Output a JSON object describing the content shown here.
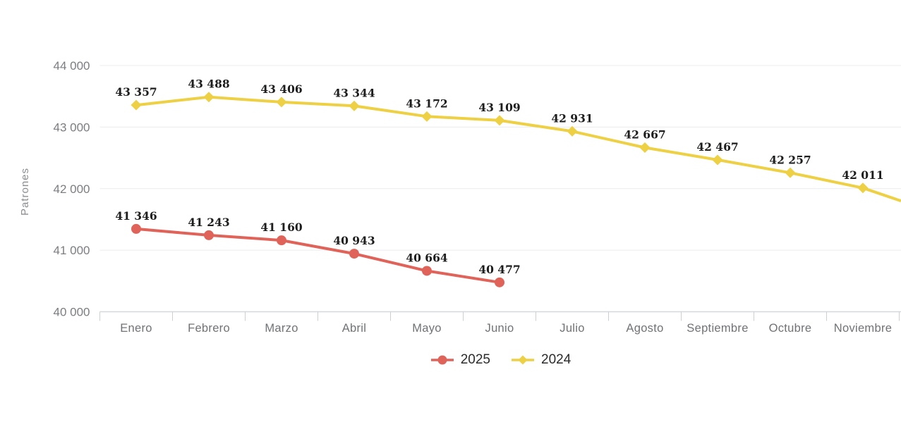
{
  "chart_data": {
    "type": "line",
    "title": "",
    "ylabel": "Patrones",
    "xlabel": "",
    "categories": [
      "Enero",
      "Febrero",
      "Marzo",
      "Abril",
      "Mayo",
      "Junio",
      "Julio",
      "Agosto",
      "Septiembre",
      "Octubre",
      "Noviembre"
    ],
    "series": [
      {
        "name": "2025",
        "color": "#e0635a",
        "marker": "circle",
        "values": [
          41346,
          41243,
          41160,
          40943,
          40664,
          40477
        ],
        "labels": [
          "41 346",
          "41 243",
          "41 160",
          "40 943",
          "40 664",
          "40 477"
        ]
      },
      {
        "name": "2024",
        "color": "#edd043",
        "marker": "diamond",
        "values": [
          43357,
          43488,
          43406,
          43344,
          43172,
          43109,
          42931,
          42667,
          42467,
          42257,
          42011
        ],
        "labels": [
          "43 357",
          "43 488",
          "43 406",
          "43 344",
          "43 172",
          "43 109",
          "42 931",
          "42 667",
          "42 467",
          "42 257",
          "42 011"
        ],
        "continues_beyond_right": true,
        "edge_value": 41800
      }
    ],
    "y_axis": {
      "min": 40000,
      "max": 44000,
      "ticks": [
        {
          "value": 44000,
          "label": "44 000"
        },
        {
          "value": 43000,
          "label": "43 000"
        },
        {
          "value": 42000,
          "label": "42 000"
        },
        {
          "value": 41000,
          "label": "41 000"
        },
        {
          "value": 40000,
          "label": "40 000"
        }
      ]
    },
    "legend_position": "bottom",
    "grid": true
  },
  "colors": {
    "background": "#ffffff",
    "grid_line": "#ececef",
    "axis_line": "#d5d8dd",
    "tick_mark": "#ccd0d6",
    "data_label": "#1d1d1d",
    "legend_text": "#2b2b2b"
  }
}
